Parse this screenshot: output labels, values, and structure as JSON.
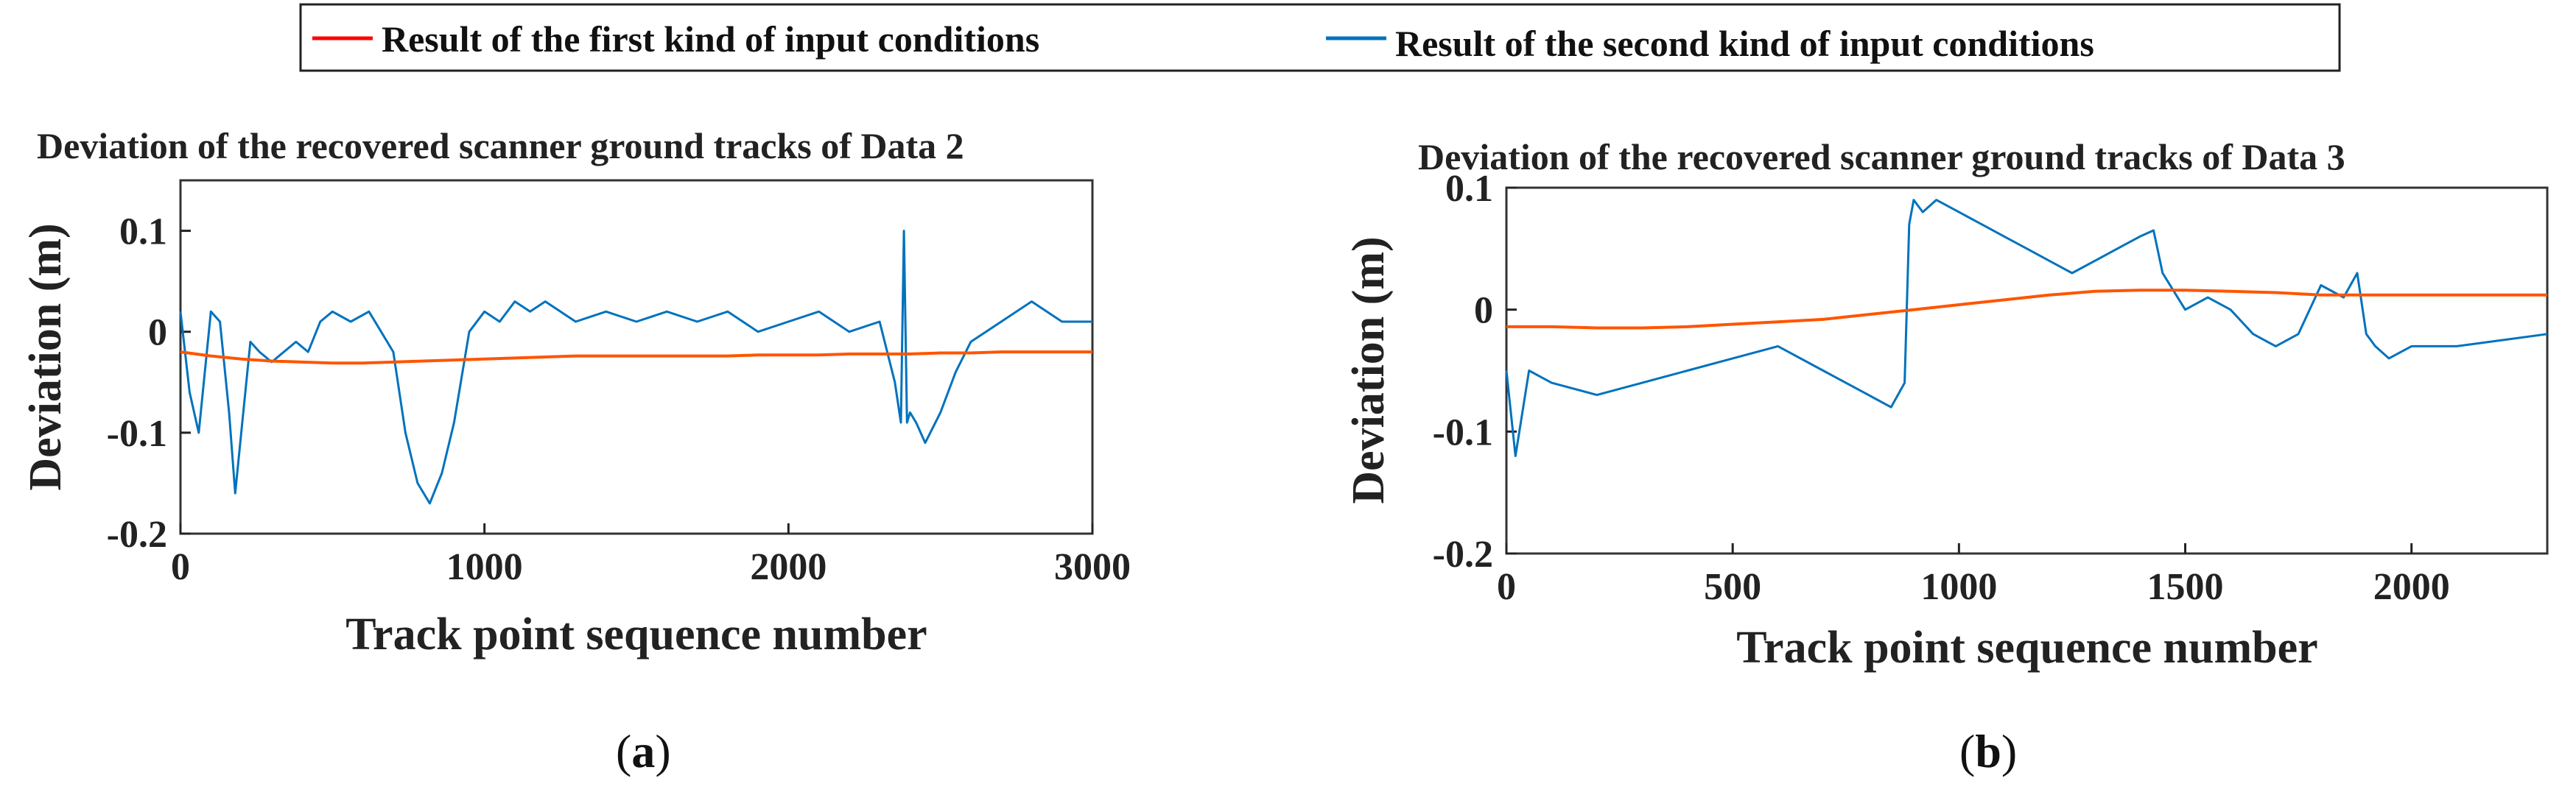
{
  "legend": {
    "items": [
      {
        "label": "Result of the first kind of input conditions",
        "color": "#ff0000"
      },
      {
        "label": "Result of the second kind of input conditions",
        "color": "#0072bd"
      }
    ]
  },
  "colors": {
    "series1": "#ff5500",
    "series2": "#0072bd",
    "axis": "#222222",
    "frame": "#333333"
  },
  "chart_data": [
    {
      "type": "line",
      "panel": "a",
      "panel_label": {
        "open": "(",
        "letter": "a",
        "close": ")"
      },
      "title": "Deviation of the recovered scanner ground tracks of Data 2",
      "xlabel": "Track point sequence number",
      "ylabel": "Deviation (m)",
      "xlim": [
        0,
        3000
      ],
      "ylim": [
        -0.2,
        0.15
      ],
      "xticks": [
        0,
        1000,
        2000,
        3000
      ],
      "xtick_labels": [
        "0",
        "1000",
        "2000",
        "3000"
      ],
      "yticks": [
        -0.2,
        -0.1,
        0,
        0.1
      ],
      "ytick_labels": [
        "-0.2",
        "-0.1",
        "0",
        "0.1"
      ],
      "series": [
        {
          "name": "Result of the first kind of input conditions",
          "x": [
            0,
            100,
            200,
            300,
            400,
            500,
            600,
            700,
            800,
            900,
            1000,
            1100,
            1200,
            1300,
            1400,
            1500,
            1600,
            1700,
            1800,
            1900,
            2000,
            2100,
            2200,
            2300,
            2400,
            2500,
            2600,
            2700,
            2800,
            2900,
            3000
          ],
          "values": [
            -0.02,
            -0.024,
            -0.027,
            -0.029,
            -0.03,
            -0.031,
            -0.031,
            -0.03,
            -0.029,
            -0.028,
            -0.027,
            -0.026,
            -0.025,
            -0.024,
            -0.024,
            -0.024,
            -0.024,
            -0.024,
            -0.024,
            -0.023,
            -0.023,
            -0.023,
            -0.022,
            -0.022,
            -0.022,
            -0.021,
            -0.021,
            -0.02,
            -0.02,
            -0.02,
            -0.02
          ]
        },
        {
          "name": "Result of the second kind of input conditions",
          "x": [
            0,
            30,
            60,
            100,
            130,
            160,
            180,
            200,
            230,
            260,
            300,
            340,
            380,
            420,
            460,
            500,
            560,
            620,
            700,
            740,
            780,
            820,
            860,
            900,
            950,
            1000,
            1050,
            1100,
            1150,
            1200,
            1300,
            1400,
            1500,
            1600,
            1700,
            1800,
            1900,
            2000,
            2100,
            2200,
            2300,
            2350,
            2370,
            2380,
            2390,
            2400,
            2420,
            2450,
            2500,
            2550,
            2600,
            2700,
            2800,
            2900,
            3000
          ],
          "values": [
            0.02,
            -0.06,
            -0.1,
            0.02,
            0.01,
            -0.08,
            -0.16,
            -0.1,
            -0.01,
            -0.02,
            -0.03,
            -0.02,
            -0.01,
            -0.02,
            0.01,
            0.02,
            0.01,
            0.02,
            -0.02,
            -0.1,
            -0.15,
            -0.17,
            -0.14,
            -0.09,
            0.0,
            0.02,
            0.01,
            0.03,
            0.02,
            0.03,
            0.01,
            0.02,
            0.01,
            0.02,
            0.01,
            0.02,
            0.0,
            0.01,
            0.02,
            0.0,
            0.01,
            -0.05,
            -0.09,
            0.1,
            -0.09,
            -0.08,
            -0.09,
            -0.11,
            -0.08,
            -0.04,
            -0.01,
            0.01,
            0.03,
            0.01,
            0.01
          ]
        }
      ]
    },
    {
      "type": "line",
      "panel": "b",
      "panel_label": {
        "open": "(",
        "letter": "b",
        "close": ")"
      },
      "title": "Deviation of the recovered scanner ground tracks of Data 3",
      "xlabel": "Track point sequence number",
      "ylabel": "Deviation (m)",
      "xlim": [
        0,
        2300
      ],
      "ylim": [
        -0.2,
        0.1
      ],
      "xticks": [
        0,
        500,
        1000,
        1500,
        2000
      ],
      "xtick_labels": [
        "0",
        "500",
        "1000",
        "1500",
        "2000"
      ],
      "yticks": [
        -0.2,
        -0.1,
        0,
        0.1
      ],
      "ytick_labels": [
        "-0.2",
        "-0.1",
        "0",
        "0.1"
      ],
      "series": [
        {
          "name": "Result of the first kind of input conditions",
          "x": [
            0,
            100,
            200,
            300,
            400,
            500,
            600,
            700,
            800,
            900,
            1000,
            1100,
            1200,
            1300,
            1400,
            1500,
            1600,
            1700,
            1800,
            1900,
            2000,
            2100,
            2200,
            2300
          ],
          "values": [
            -0.014,
            -0.014,
            -0.015,
            -0.015,
            -0.014,
            -0.012,
            -0.01,
            -0.008,
            -0.004,
            0.0,
            0.004,
            0.008,
            0.012,
            0.015,
            0.016,
            0.016,
            0.015,
            0.014,
            0.012,
            0.012,
            0.012,
            0.012,
            0.012,
            0.012
          ]
        },
        {
          "name": "Result of the second kind of input conditions",
          "x": [
            0,
            20,
            50,
            100,
            200,
            300,
            400,
            500,
            600,
            700,
            750,
            800,
            850,
            880,
            890,
            900,
            920,
            950,
            1000,
            1050,
            1100,
            1150,
            1200,
            1250,
            1300,
            1350,
            1400,
            1430,
            1450,
            1500,
            1550,
            1600,
            1650,
            1700,
            1750,
            1800,
            1850,
            1880,
            1900,
            1920,
            1950,
            2000,
            2100,
            2200,
            2300
          ],
          "values": [
            -0.05,
            -0.12,
            -0.05,
            -0.06,
            -0.07,
            -0.06,
            -0.05,
            -0.04,
            -0.03,
            -0.05,
            -0.06,
            -0.07,
            -0.08,
            -0.06,
            0.07,
            0.09,
            0.08,
            0.09,
            0.08,
            0.07,
            0.06,
            0.05,
            0.04,
            0.03,
            0.04,
            0.05,
            0.06,
            0.065,
            0.03,
            0.0,
            0.01,
            0.0,
            -0.02,
            -0.03,
            -0.02,
            0.02,
            0.01,
            0.03,
            -0.02,
            -0.03,
            -0.04,
            -0.03,
            -0.03,
            -0.025,
            -0.02
          ]
        }
      ]
    }
  ]
}
